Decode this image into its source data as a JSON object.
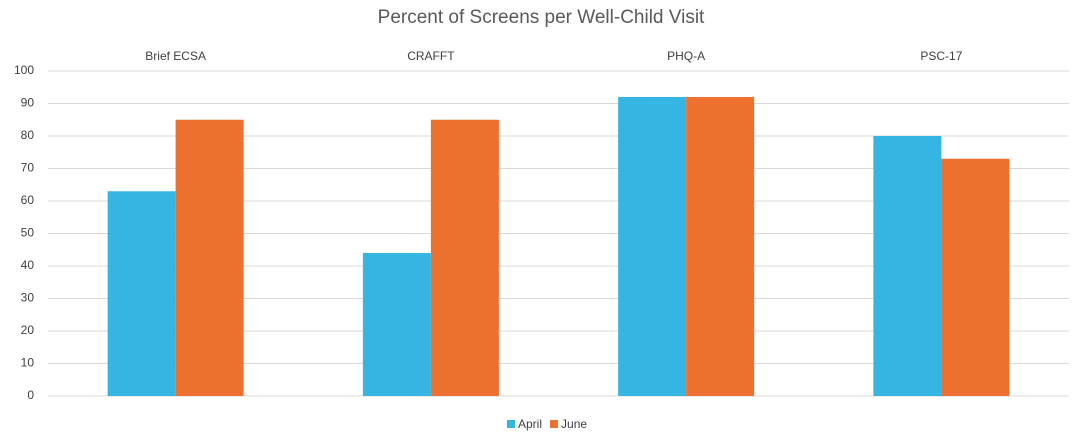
{
  "chart_data": {
    "type": "bar",
    "title": "Percent of Screens per Well-Child Visit",
    "categories": [
      "Brief ECSA",
      "CRAFFT",
      "PHQ-A",
      "PSC-17"
    ],
    "series": [
      {
        "name": "April",
        "color": "#35b5e1",
        "values": [
          63,
          44,
          92,
          80
        ]
      },
      {
        "name": "June",
        "color": "#ed7030",
        "values": [
          85,
          85,
          92,
          73
        ]
      }
    ],
    "ylim": [
      0,
      100
    ],
    "yticks": [
      0,
      10,
      20,
      30,
      40,
      50,
      60,
      70,
      80,
      90,
      100
    ],
    "grid": true,
    "legend": "bottom"
  }
}
